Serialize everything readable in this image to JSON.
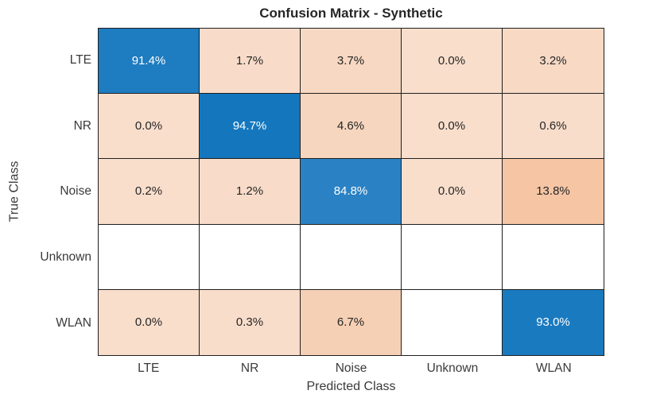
{
  "chart_data": {
    "type": "heatmap",
    "title": "Confusion Matrix - Synthetic",
    "xlabel": "Predicted Class",
    "ylabel": "True Class",
    "classes": [
      "LTE",
      "NR",
      "Noise",
      "Unknown",
      "WLAN"
    ],
    "unit": "%",
    "matrix": [
      [
        91.4,
        1.7,
        3.7,
        0.0,
        3.2
      ],
      [
        0.0,
        94.7,
        4.6,
        0.0,
        0.6
      ],
      [
        0.2,
        1.2,
        84.8,
        0.0,
        13.8
      ],
      [
        null,
        null,
        null,
        null,
        null
      ],
      [
        0.0,
        0.3,
        6.7,
        null,
        93.0
      ]
    ],
    "cell_labels": [
      [
        "91.4%",
        "1.7%",
        "3.7%",
        "0.0%",
        "3.2%"
      ],
      [
        "0.0%",
        "94.7%",
        "4.6%",
        "0.0%",
        "0.6%"
      ],
      [
        "0.2%",
        "1.2%",
        "84.8%",
        "0.0%",
        "13.8%"
      ],
      [
        "",
        "",
        "",
        "",
        ""
      ],
      [
        "0.0%",
        "0.3%",
        "6.7%",
        "",
        "93.0%"
      ]
    ],
    "cell_colors": [
      [
        "#1E7CC0",
        "#F8DCC9",
        "#F7D8C2",
        "#F9DECC",
        "#F7D9C4"
      ],
      [
        "#F9DECC",
        "#1477BE",
        "#F7D6BF",
        "#F9DECC",
        "#F8DDCB"
      ],
      [
        "#F9DECC",
        "#F8DCC9",
        "#2A82C4",
        "#F9DECC",
        "#F5C5A4"
      ],
      [
        "#FFFFFF",
        "#FFFFFF",
        "#FFFFFF",
        "#FFFFFF",
        "#FFFFFF"
      ],
      [
        "#F9DECC",
        "#F9DDCB",
        "#F6D0B5",
        "#FFFFFF",
        "#1A7ABF"
      ]
    ],
    "colors": {
      "diagonal_blue": "#1477BE",
      "offdiagonal_peach_max": "#F5C5A4",
      "empty_cell": "#FFFFFF",
      "grid_line": "#1F1F1F",
      "title_text": "#262626",
      "axis_text": "#3A3A3A",
      "cell_text_on_dark": "#FFFFFF",
      "cell_text_on_light": "#262626"
    },
    "layout": {
      "legend": "none",
      "grid": "on",
      "rows": 5,
      "cols": 5
    }
  }
}
